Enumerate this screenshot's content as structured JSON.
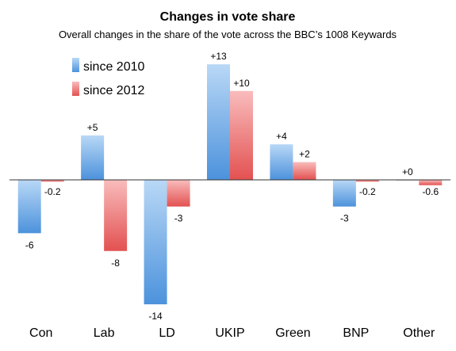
{
  "chart_data": {
    "type": "bar",
    "title": "Changes in vote share",
    "subtitle": "Overall changes in the share of the vote across the BBC’s 1008 Keywards",
    "categories": [
      "Con",
      "Lab",
      "LD",
      "UKIP",
      "Green",
      "BNP",
      "Other"
    ],
    "series": [
      {
        "name": "since 2010",
        "color": "#5a9ee0",
        "values": [
          -6,
          5,
          -14,
          13,
          4,
          -3,
          0
        ],
        "labels": [
          "-6",
          "+5",
          "-14",
          "+13",
          "+4",
          "-3",
          "+0"
        ]
      },
      {
        "name": "since 2012",
        "color": "#e65c5c",
        "values": [
          -0.2,
          -8,
          -3,
          10,
          2,
          -0.2,
          -0.6
        ],
        "labels": [
          "-0.2",
          "-8",
          "-3",
          "+10",
          "+2",
          "-0.2",
          "-0.6"
        ]
      }
    ],
    "ylim": [
      -14,
      13
    ],
    "grid": false,
    "legend_position": "top-left"
  }
}
